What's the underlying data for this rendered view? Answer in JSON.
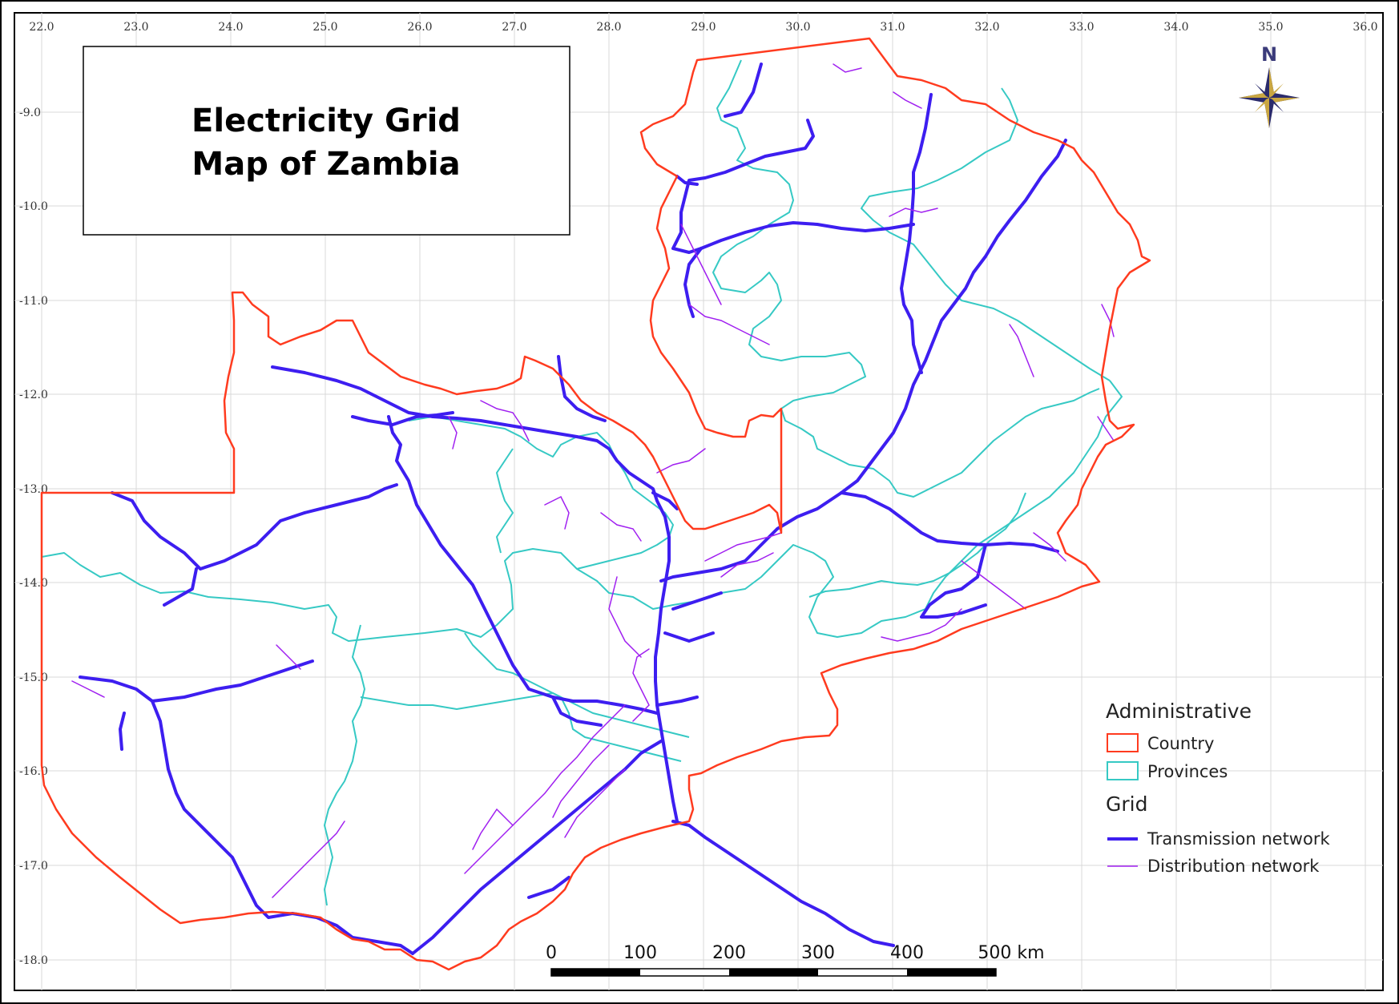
{
  "map_title_line1": "Electricity Grid",
  "map_title_line2": "Map of Zambia",
  "longitude_ticks": [
    "22.0",
    "23.0",
    "24.0",
    "25.0",
    "26.0",
    "27.0",
    "28.0",
    "29.0",
    "30.0",
    "31.0",
    "32.0",
    "33.0",
    "34.0",
    "35.0",
    "36.0"
  ],
  "latitude_ticks": [
    "-9.0",
    "-10.0",
    "-11.0",
    "-12.0",
    "-13.0",
    "-14.0",
    "-15.0",
    "-16.0",
    "-17.0",
    "-18.0"
  ],
  "north_label": "N",
  "legend": {
    "administrative_heading": "Administrative",
    "country_label": "Country",
    "provinces_label": "Provinces",
    "grid_heading": "Grid",
    "transmission_label": "Transmission network",
    "distribution_label": "Distribution network"
  },
  "scale_bar": {
    "labels": [
      "0",
      "100",
      "200",
      "300",
      "400",
      "500 km"
    ]
  },
  "colors": {
    "country": "#ff3b1f",
    "provinces": "#36c9c4",
    "transmission": "#3d1ef0",
    "distribution": "#a020f0",
    "gridline": "#d9d9d9"
  }
}
